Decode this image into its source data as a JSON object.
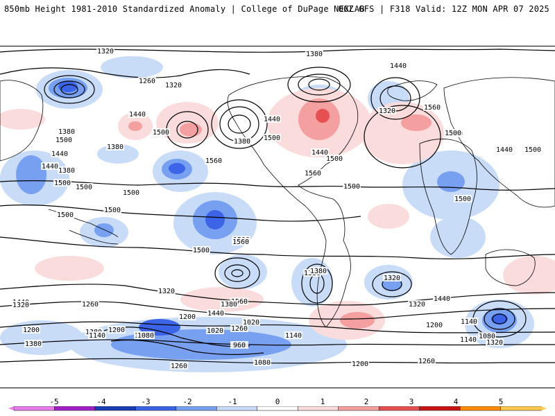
{
  "header": {
    "title_left": "850mb Height 1981-2010 Standardized Anomaly | College of DuPage NEXLAB",
    "title_right": "06Z GFS | F318 Valid: 12Z MON APR 07 2025"
  },
  "contour_labels": [
    "1320",
    "1380",
    "1260",
    "1320",
    "1380",
    "1440",
    "1560",
    "1500",
    "1380",
    "1440",
    "1320",
    "1500",
    "1440",
    "1380",
    "1500",
    "1560",
    "1440",
    "1500",
    "1500",
    "1500",
    "1500",
    "1440",
    "1500",
    "1440",
    "1500",
    "1500",
    "1380",
    "1440",
    "1560",
    "1500",
    "1500",
    "1500",
    "1500",
    "1560",
    "1500",
    "1500",
    "1380",
    "1320",
    "1440",
    "1380",
    "1320",
    "1380",
    "1440",
    "1380",
    "1200",
    "1260",
    "1320",
    "1560",
    "1440",
    "1320",
    "1200",
    "1140",
    "1380",
    "1260",
    "1200",
    "1080",
    "1020",
    "1080",
    "1020",
    "960",
    "1140",
    "1200",
    "1140",
    "1080",
    "1200",
    "1260",
    "1140",
    "1080",
    "1260",
    "1320"
  ],
  "colorbar": {
    "ticks": [
      "-5",
      "-4",
      "-3",
      "-2",
      "-1",
      "0",
      "1",
      "2",
      "3",
      "4",
      "5"
    ],
    "colors": [
      "#e87ce8",
      "#a020c8",
      "#1e3cb4",
      "#3c64e6",
      "#78a0f0",
      "#c8dcf8",
      "#ffffff",
      "#fadcdc",
      "#f5a0a0",
      "#e65050",
      "#c81414",
      "#ff8c00",
      "#ffc850"
    ]
  }
}
